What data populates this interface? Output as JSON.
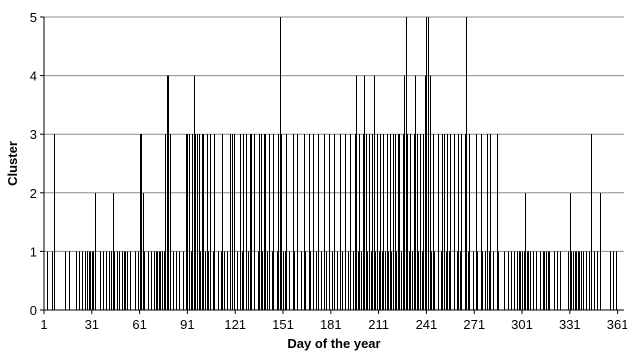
{
  "chart_data": {
    "type": "bar",
    "xlabel": "Day of the year",
    "ylabel": "Cluster",
    "xlim": [
      1,
      365
    ],
    "ylim": [
      0,
      5
    ],
    "x_ticks": [
      1,
      31,
      61,
      91,
      121,
      151,
      181,
      211,
      241,
      271,
      301,
      331,
      361
    ],
    "y_ticks": [
      0,
      1,
      2,
      3,
      4,
      5
    ],
    "grid": true,
    "points": [
      [
        3,
        1
      ],
      [
        6,
        1
      ],
      [
        7,
        3
      ],
      [
        14,
        1
      ],
      [
        17,
        1
      ],
      [
        21,
        1
      ],
      [
        23,
        1
      ],
      [
        25,
        1
      ],
      [
        27,
        1
      ],
      [
        28,
        1
      ],
      [
        29,
        1
      ],
      [
        30,
        1
      ],
      [
        31,
        1
      ],
      [
        32,
        1
      ],
      [
        33,
        2
      ],
      [
        36,
        1
      ],
      [
        38,
        1
      ],
      [
        40,
        1
      ],
      [
        42,
        1
      ],
      [
        43,
        1
      ],
      [
        44,
        2
      ],
      [
        45,
        1
      ],
      [
        47,
        1
      ],
      [
        48,
        1
      ],
      [
        50,
        1
      ],
      [
        51,
        1
      ],
      [
        52,
        1
      ],
      [
        53,
        1
      ],
      [
        55,
        1
      ],
      [
        58,
        1
      ],
      [
        60,
        1
      ],
      [
        61,
        3
      ],
      [
        62,
        3
      ],
      [
        63,
        2
      ],
      [
        64,
        1
      ],
      [
        66,
        1
      ],
      [
        68,
        1
      ],
      [
        70,
        1
      ],
      [
        71,
        1
      ],
      [
        72,
        1
      ],
      [
        73,
        1
      ],
      [
        74,
        1
      ],
      [
        75,
        1
      ],
      [
        76,
        1
      ],
      [
        77,
        3
      ],
      [
        78,
        4
      ],
      [
        79,
        4
      ],
      [
        80,
        3
      ],
      [
        82,
        1
      ],
      [
        84,
        1
      ],
      [
        86,
        1
      ],
      [
        88,
        1
      ],
      [
        90,
        3
      ],
      [
        91,
        3
      ],
      [
        92,
        3
      ],
      [
        93,
        1
      ],
      [
        94,
        3
      ],
      [
        95,
        4
      ],
      [
        96,
        3
      ],
      [
        97,
        3
      ],
      [
        98,
        3
      ],
      [
        99,
        1
      ],
      [
        100,
        3
      ],
      [
        101,
        3
      ],
      [
        102,
        1
      ],
      [
        103,
        3
      ],
      [
        104,
        1
      ],
      [
        105,
        3
      ],
      [
        107,
        1
      ],
      [
        108,
        3
      ],
      [
        110,
        1
      ],
      [
        112,
        1
      ],
      [
        113,
        3
      ],
      [
        114,
        1
      ],
      [
        116,
        1
      ],
      [
        118,
        3
      ],
      [
        119,
        3
      ],
      [
        120,
        3
      ],
      [
        122,
        1
      ],
      [
        124,
        3
      ],
      [
        125,
        1
      ],
      [
        126,
        3
      ],
      [
        128,
        3
      ],
      [
        129,
        1
      ],
      [
        130,
        3
      ],
      [
        131,
        3
      ],
      [
        133,
        3
      ],
      [
        135,
        1
      ],
      [
        136,
        3
      ],
      [
        137,
        3
      ],
      [
        138,
        1
      ],
      [
        139,
        3
      ],
      [
        140,
        3
      ],
      [
        141,
        1
      ],
      [
        142,
        3
      ],
      [
        144,
        1
      ],
      [
        145,
        3
      ],
      [
        147,
        1
      ],
      [
        148,
        3
      ],
      [
        149,
        5
      ],
      [
        150,
        3
      ],
      [
        151,
        1
      ],
      [
        152,
        1
      ],
      [
        153,
        3
      ],
      [
        155,
        1
      ],
      [
        157,
        3
      ],
      [
        158,
        1
      ],
      [
        160,
        3
      ],
      [
        162,
        1
      ],
      [
        164,
        3
      ],
      [
        165,
        1
      ],
      [
        167,
        3
      ],
      [
        168,
        1
      ],
      [
        170,
        3
      ],
      [
        172,
        1
      ],
      [
        173,
        3
      ],
      [
        175,
        1
      ],
      [
        177,
        3
      ],
      [
        178,
        1
      ],
      [
        180,
        3
      ],
      [
        182,
        1
      ],
      [
        183,
        3
      ],
      [
        185,
        1
      ],
      [
        187,
        3
      ],
      [
        188,
        1
      ],
      [
        190,
        3
      ],
      [
        192,
        1
      ],
      [
        193,
        3
      ],
      [
        195,
        1
      ],
      [
        196,
        3
      ],
      [
        197,
        4
      ],
      [
        198,
        1
      ],
      [
        199,
        3
      ],
      [
        200,
        1
      ],
      [
        201,
        3
      ],
      [
        202,
        4
      ],
      [
        203,
        3
      ],
      [
        204,
        1
      ],
      [
        205,
        3
      ],
      [
        206,
        1
      ],
      [
        207,
        3
      ],
      [
        208,
        4
      ],
      [
        209,
        1
      ],
      [
        210,
        3
      ],
      [
        211,
        1
      ],
      [
        212,
        3
      ],
      [
        213,
        1
      ],
      [
        214,
        3
      ],
      [
        215,
        1
      ],
      [
        216,
        3
      ],
      [
        217,
        1
      ],
      [
        218,
        3
      ],
      [
        219,
        1
      ],
      [
        220,
        3
      ],
      [
        221,
        3
      ],
      [
        222,
        1
      ],
      [
        223,
        3
      ],
      [
        224,
        3
      ],
      [
        225,
        1
      ],
      [
        226,
        3
      ],
      [
        227,
        4
      ],
      [
        228,
        5
      ],
      [
        229,
        3
      ],
      [
        230,
        1
      ],
      [
        231,
        3
      ],
      [
        232,
        1
      ],
      [
        233,
        3
      ],
      [
        234,
        4
      ],
      [
        235,
        3
      ],
      [
        236,
        1
      ],
      [
        237,
        3
      ],
      [
        238,
        1
      ],
      [
        239,
        3
      ],
      [
        240,
        4
      ],
      [
        241,
        5
      ],
      [
        242,
        5
      ],
      [
        243,
        4
      ],
      [
        244,
        1
      ],
      [
        245,
        3
      ],
      [
        246,
        1
      ],
      [
        248,
        3
      ],
      [
        250,
        1
      ],
      [
        251,
        3
      ],
      [
        252,
        3
      ],
      [
        253,
        1
      ],
      [
        254,
        3
      ],
      [
        255,
        1
      ],
      [
        256,
        3
      ],
      [
        258,
        3
      ],
      [
        260,
        1
      ],
      [
        261,
        3
      ],
      [
        262,
        1
      ],
      [
        263,
        3
      ],
      [
        265,
        3
      ],
      [
        266,
        5
      ],
      [
        267,
        1
      ],
      [
        268,
        3
      ],
      [
        270,
        1
      ],
      [
        272,
        3
      ],
      [
        273,
        1
      ],
      [
        275,
        3
      ],
      [
        276,
        1
      ],
      [
        278,
        1
      ],
      [
        279,
        3
      ],
      [
        280,
        1
      ],
      [
        281,
        3
      ],
      [
        283,
        1
      ],
      [
        285,
        3
      ],
      [
        286,
        1
      ],
      [
        290,
        1
      ],
      [
        292,
        1
      ],
      [
        294,
        1
      ],
      [
        296,
        1
      ],
      [
        298,
        1
      ],
      [
        299,
        1
      ],
      [
        300,
        1
      ],
      [
        301,
        1
      ],
      [
        302,
        1
      ],
      [
        303,
        2
      ],
      [
        304,
        1
      ],
      [
        305,
        1
      ],
      [
        306,
        1
      ],
      [
        308,
        1
      ],
      [
        310,
        1
      ],
      [
        312,
        1
      ],
      [
        314,
        1
      ],
      [
        315,
        1
      ],
      [
        316,
        1
      ],
      [
        317,
        1
      ],
      [
        318,
        1
      ],
      [
        321,
        1
      ],
      [
        323,
        1
      ],
      [
        325,
        1
      ],
      [
        330,
        1
      ],
      [
        331,
        2
      ],
      [
        332,
        1
      ],
      [
        333,
        1
      ],
      [
        334,
        1
      ],
      [
        335,
        1
      ],
      [
        336,
        1
      ],
      [
        337,
        1
      ],
      [
        338,
        1
      ],
      [
        339,
        1
      ],
      [
        341,
        1
      ],
      [
        343,
        1
      ],
      [
        344,
        3
      ],
      [
        346,
        1
      ],
      [
        348,
        1
      ],
      [
        350,
        2
      ],
      [
        356,
        1
      ],
      [
        358,
        1
      ],
      [
        360,
        1
      ]
    ]
  }
}
